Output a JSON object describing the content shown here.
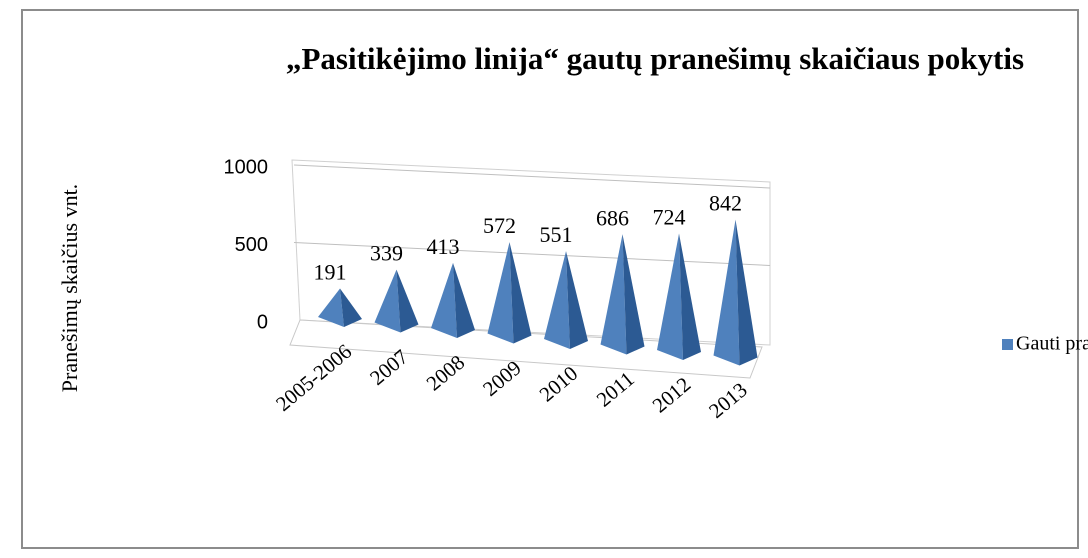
{
  "chart_data": {
    "type": "pyramid3d",
    "title": "„Pasitikėjimo linija“ gautų pranešimų skaičiaus pokytis",
    "y_label": "Pranešimų skaičius vnt.",
    "categories": [
      "2005-2006",
      "2007",
      "2008",
      "2009",
      "2010",
      "2011",
      "2012",
      "2013"
    ],
    "series": [
      {
        "name": "Gauti praneš",
        "color": "#4f81bd",
        "values": [
          191,
          339,
          413,
          572,
          551,
          686,
          724,
          842
        ]
      }
    ],
    "ylim": [
      0,
      1000
    ],
    "yticks": [
      0,
      500,
      1000
    ],
    "grid": true,
    "legend": "right"
  }
}
